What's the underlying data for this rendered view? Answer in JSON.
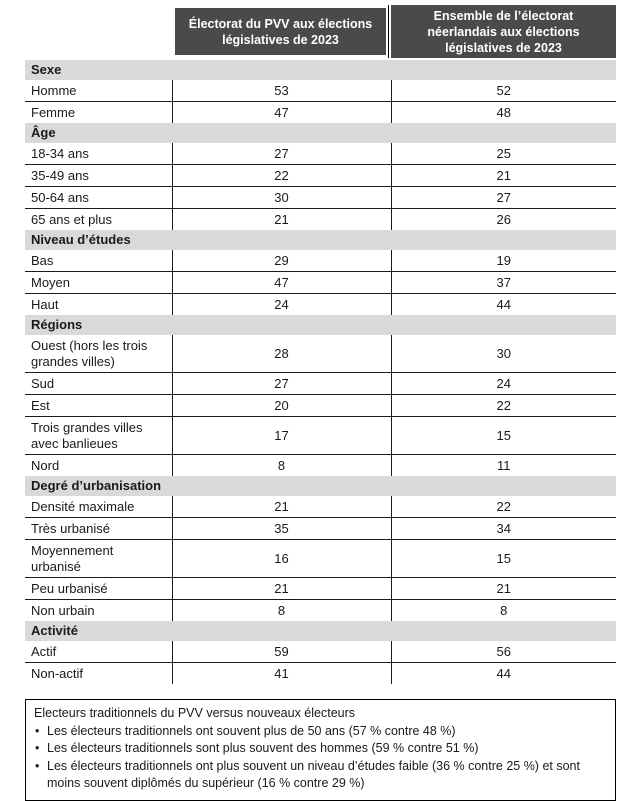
{
  "colors": {
    "header_bg": "#4a4a4a",
    "header_text": "#ffffff",
    "section_bg": "#d9d9d9",
    "line": "#1a1a1a",
    "text": "#1a1a1a"
  },
  "table": {
    "col_pvv": "Électorat du PVV aux élections législatives de 2023",
    "col_ensemble": "Ensemble de l’électorat néerlandais aux élections législatives de 2023",
    "sections": [
      {
        "title": "Sexe",
        "rows": [
          {
            "label": "Homme",
            "pvv": "53",
            "ensemble": "52"
          },
          {
            "label": "Femme",
            "pvv": "47",
            "ensemble": "48"
          }
        ]
      },
      {
        "title": "Âge",
        "rows": [
          {
            "label": "18-34 ans",
            "pvv": "27",
            "ensemble": "25"
          },
          {
            "label": "35-49 ans",
            "pvv": "22",
            "ensemble": "21"
          },
          {
            "label": "50-64 ans",
            "pvv": "30",
            "ensemble": "27"
          },
          {
            "label": "65 ans et plus",
            "pvv": "21",
            "ensemble": "26"
          }
        ]
      },
      {
        "title": "Niveau d’études",
        "rows": [
          {
            "label": "Bas",
            "pvv": "29",
            "ensemble": "19"
          },
          {
            "label": "Moyen",
            "pvv": "47",
            "ensemble": "37"
          },
          {
            "label": "Haut",
            "pvv": "24",
            "ensemble": "44"
          }
        ]
      },
      {
        "title": "Régions",
        "rows": [
          {
            "label": "Ouest (hors les trois grandes villes)",
            "pvv": "28",
            "ensemble": "30"
          },
          {
            "label": "Sud",
            "pvv": "27",
            "ensemble": "24"
          },
          {
            "label": "Est",
            "pvv": "20",
            "ensemble": "22"
          },
          {
            "label": "Trois grandes villes avec banlieues",
            "pvv": "17",
            "ensemble": "15"
          },
          {
            "label": "Nord",
            "pvv": "8",
            "ensemble": "11"
          }
        ]
      },
      {
        "title": "Degré d’urbanisation",
        "rows": [
          {
            "label": "Densité maximale",
            "pvv": "21",
            "ensemble": "22"
          },
          {
            "label": "Très urbanisé",
            "pvv": "35",
            "ensemble": "34"
          },
          {
            "label": "Moyennement urbanisé",
            "pvv": "16",
            "ensemble": "15"
          },
          {
            "label": "Peu urbanisé",
            "pvv": "21",
            "ensemble": "21"
          },
          {
            "label": "Non urbain",
            "pvv": "8",
            "ensemble": "8"
          }
        ]
      },
      {
        "title": "Activité",
        "rows": [
          {
            "label": "Actif",
            "pvv": "59",
            "ensemble": "56"
          },
          {
            "label": "Non-actif",
            "pvv": "41",
            "ensemble": "44"
          }
        ]
      }
    ]
  },
  "note": {
    "title": "Electeurs traditionnels du PVV versus nouveaux électeurs",
    "bullets": [
      "Les électeurs traditionnels ont souvent plus de 50 ans (57 % contre 48 %)",
      "Les électeurs traditionnels sont plus souvent des hommes (59 % contre 51 %)",
      "Les électeurs traditionnels ont plus souvent un niveau d’études faible (36 % contre 25 %) et sont moins souvent diplômés du supérieur (16 % contre 29 %)"
    ]
  }
}
